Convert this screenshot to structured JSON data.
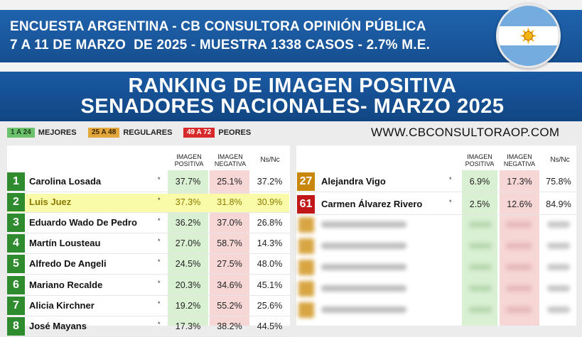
{
  "header": {
    "line1": "ENCUESTA ARGENTINA - CB CONSULTORA OPINIÓN PÚBLICA",
    "line2": "7 A 11 DE MARZO  DE 2025 - MUESTRA 1338 CASOS - 2.7% M.E.",
    "title1": "RANKING DE IMAGEN POSITIVA",
    "title2": "SENADORES NACIONALES- MARZO 2025"
  },
  "legend": [
    {
      "chip": "1 A 24",
      "label": "MEJORES",
      "color": "#4caf50"
    },
    {
      "chip": "25 A 48",
      "label": "REGULARES",
      "color": "#d99a16"
    },
    {
      "chip": "49 A 72",
      "label": "PEORES",
      "color": "#d11f1f"
    }
  ],
  "website": "WWW.CBCONSULTORAOP.COM",
  "columns": {
    "positive": [
      "IMAGEN",
      "POSITIVA"
    ],
    "negative": [
      "IMAGEN",
      "NEGATIVA"
    ],
    "nsnc": "Ns/Nc"
  },
  "marker": "*",
  "colors": {
    "green": "#2e8b2e",
    "gold": "#c8860a",
    "red": "#c01818",
    "pos_shade": "#d9f0d3",
    "neg_shade": "#f7d6d6",
    "highlight": "#fafba8"
  },
  "chart_data": {
    "type": "table",
    "left": [
      {
        "rank": "1",
        "name": "Carolina Losada",
        "positive": "37.7%",
        "negative": "25.1%",
        "nsnc": "37.2%"
      },
      {
        "rank": "2",
        "name": "Luis Juez",
        "positive": "37.3%",
        "negative": "31.8%",
        "nsnc": "30.9%",
        "highlighted": true
      },
      {
        "rank": "3",
        "name": "Eduardo Wado De Pedro",
        "positive": "36.2%",
        "negative": "37.0%",
        "nsnc": "26.8%"
      },
      {
        "rank": "4",
        "name": "Martín Lousteau",
        "positive": "27.0%",
        "negative": "58.7%",
        "nsnc": "14.3%"
      },
      {
        "rank": "5",
        "name": "Alfredo De Angeli",
        "positive": "24.5%",
        "negative": "27.5%",
        "nsnc": "48.0%"
      },
      {
        "rank": "6",
        "name": "Mariano Recalde",
        "positive": "20.3%",
        "negative": "34.6%",
        "nsnc": "45.1%"
      },
      {
        "rank": "7",
        "name": "Alicia Kirchner",
        "positive": "19.2%",
        "negative": "55.2%",
        "nsnc": "25.6%"
      },
      {
        "rank": "8",
        "name": "José Mayans",
        "positive": "17.3%",
        "negative": "38.2%",
        "nsnc": "44.5%"
      }
    ],
    "right": [
      {
        "rank": "27",
        "name": "Alejandra Vigo",
        "positive": "6.9%",
        "negative": "17.3%",
        "nsnc": "75.8%"
      },
      {
        "rank": "61",
        "name": "Carmen Álvarez Rivero",
        "positive": "2.5%",
        "negative": "12.6%",
        "nsnc": "84.9%"
      }
    ]
  }
}
